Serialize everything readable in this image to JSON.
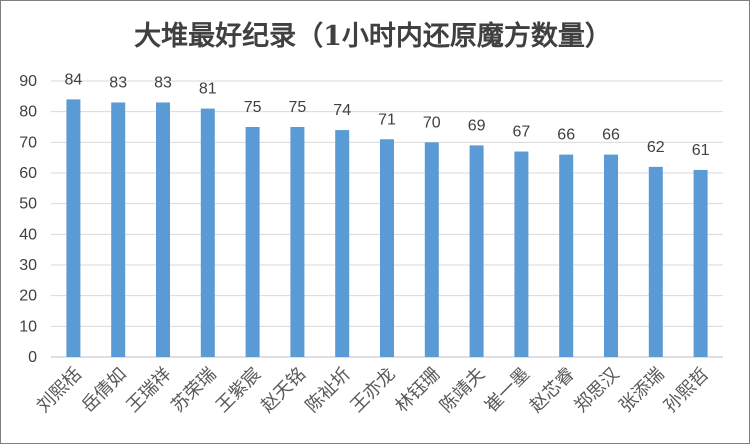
{
  "chart_data": {
    "type": "bar",
    "title": "大堆最好纪录（1小时内还原魔方数量）",
    "xlabel": "",
    "ylabel": "",
    "categories": [
      "刘熙栝",
      "岳倩如",
      "王瑞祥",
      "苏荣瑞",
      "王紫宸",
      "赵天铭",
      "陈祉圻",
      "王亦龙",
      "林钰珊",
      "陈靖夫",
      "崔一墨",
      "赵芯睿",
      "郑思汉",
      "张添瑞",
      "孙熙哲"
    ],
    "values": [
      84,
      83,
      83,
      81,
      75,
      75,
      74,
      71,
      70,
      69,
      67,
      66,
      66,
      62,
      61
    ],
    "ylim": [
      0,
      90
    ],
    "yticks": [
      0,
      10,
      20,
      30,
      40,
      50,
      60,
      70,
      80,
      90
    ],
    "grid": true,
    "legend": "none",
    "colors": {
      "bar": "#5b9bd5",
      "text": "#404040",
      "grid": "#d9d9d9"
    }
  }
}
